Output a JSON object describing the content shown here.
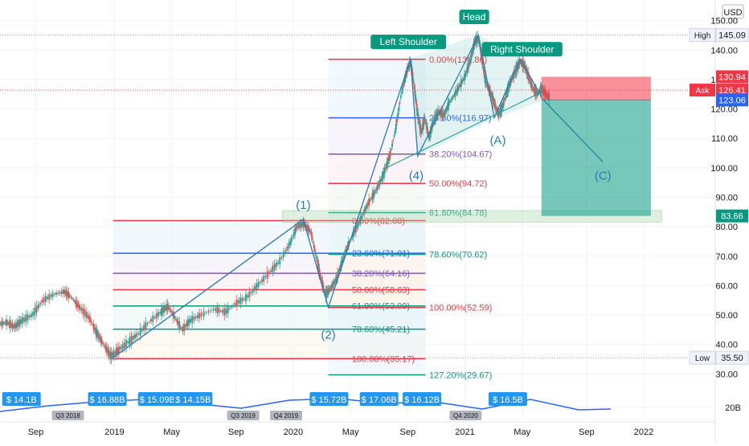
{
  "chart_data": {
    "type": "candlestick",
    "currency": "USD",
    "y_ticks": [
      "150.00",
      "140.00",
      "130.00",
      "120.00",
      "110.00",
      "100.00",
      "90.00",
      "80.00",
      "70.00",
      "60.00",
      "50.00",
      "40.00",
      "30.00"
    ],
    "y_ticks_vals": [
      150,
      140,
      130,
      120,
      110,
      100,
      90,
      80,
      70,
      60,
      50,
      40,
      30
    ],
    "volume_tick": "20B",
    "ylim": [
      26,
      157
    ],
    "x_ticks": [
      "Sep",
      "2019",
      "May",
      "Sep",
      "2020",
      "May",
      "Sep",
      "2021",
      "May",
      "Sep",
      "2022"
    ],
    "x_ticks_pos": [
      0.05,
      0.16,
      0.24,
      0.33,
      0.41,
      0.49,
      0.57,
      0.65,
      0.73,
      0.82,
      0.9
    ],
    "price_labels": {
      "high": {
        "label": "High",
        "value": "145.09",
        "v": 145.09
      },
      "low": {
        "label": "Low",
        "value": "35.50",
        "v": 35.5
      },
      "ask": {
        "label": "Ask",
        "value": "126.41",
        "v": 126.41
      },
      "stop": {
        "value": "130.94",
        "v": 130.94
      },
      "price": {
        "value": "123.06",
        "v": 123.06
      },
      "target": {
        "value": "83.66",
        "v": 83.66
      }
    },
    "fib_upper": [
      {
        "text": "0.00%(136.86)",
        "v": 136.86,
        "c": "red"
      },
      {
        "text": "23.60%(116.97)",
        "v": 116.97,
        "c": "blue"
      },
      {
        "text": "38.20%(104.67)",
        "v": 104.67,
        "c": "purple"
      },
      {
        "text": "50.00%(94.72)",
        "v": 94.72,
        "c": "red"
      },
      {
        "text": "61.80%(84.78)",
        "v": 84.78,
        "c": "teal"
      },
      {
        "text": "78.60%(70.62)",
        "v": 70.62,
        "c": "teal"
      },
      {
        "text": "100.00%(52.59)",
        "v": 52.59,
        "c": "red"
      },
      {
        "text": "127.20%(29.67)",
        "v": 29.67,
        "c": "teal"
      }
    ],
    "fib_lower": [
      {
        "text": "0.00%(82.08)",
        "v": 82.08,
        "c": "red"
      },
      {
        "text": "23.60%(71.01)",
        "v": 71.01,
        "c": "blue"
      },
      {
        "text": "38.20%(64.16)",
        "v": 64.16,
        "c": "purple"
      },
      {
        "text": "50.00%(58.63)",
        "v": 58.63,
        "c": "red"
      },
      {
        "text": "61.80%(53.09)",
        "v": 53.09,
        "c": "teal"
      },
      {
        "text": "78.60%(45.21)",
        "v": 45.21,
        "c": "teal"
      },
      {
        "text": "100.00%(35.17)",
        "v": 35.17,
        "c": "red"
      }
    ],
    "pattern_labels": {
      "left": "Left Shoulder",
      "head": "Head",
      "right": "Right Shoulder"
    },
    "waves": [
      {
        "text": "(1)",
        "x": 0.424,
        "v": 86
      },
      {
        "text": "(2)",
        "x": 0.459,
        "v": 42
      },
      {
        "text": "(4)",
        "x": 0.582,
        "v": 96
      },
      {
        "text": "(A)",
        "x": 0.696,
        "v": 108
      },
      {
        "text": "(C)",
        "x": 0.843,
        "v": 96
      }
    ],
    "earnings": [
      "$ 14.1B",
      "$ 16.88B",
      "$ 15.09B",
      "$ 14.15B",
      "$ 15.72B",
      "$ 17.06B",
      "$ 16.12B",
      "$ 16.5B"
    ],
    "earnings_pos": [
      0.03,
      0.15,
      0.22,
      0.27,
      0.46,
      0.53,
      0.59,
      0.71
    ],
    "quarters": [
      "Q3 2018",
      "Q3 2019",
      "Q4 2019",
      "Q4 2020"
    ],
    "quarters_pos": [
      0.095,
      0.34,
      0.4,
      0.651
    ],
    "price_series": [
      [
        0.0,
        47
      ],
      [
        0.01,
        47.5
      ],
      [
        0.02,
        46
      ],
      [
        0.03,
        48
      ],
      [
        0.045,
        50
      ],
      [
        0.06,
        55
      ],
      [
        0.075,
        57
      ],
      [
        0.09,
        58
      ],
      [
        0.1,
        56
      ],
      [
        0.11,
        53
      ],
      [
        0.125,
        49
      ],
      [
        0.135,
        44
      ],
      [
        0.145,
        40
      ],
      [
        0.155,
        36
      ],
      [
        0.165,
        38
      ],
      [
        0.18,
        41
      ],
      [
        0.195,
        44
      ],
      [
        0.21,
        48
      ],
      [
        0.225,
        51
      ],
      [
        0.235,
        53
      ],
      [
        0.245,
        49
      ],
      [
        0.255,
        45
      ],
      [
        0.265,
        48
      ],
      [
        0.28,
        50
      ],
      [
        0.3,
        52
      ],
      [
        0.315,
        51
      ],
      [
        0.33,
        54
      ],
      [
        0.345,
        56
      ],
      [
        0.36,
        60
      ],
      [
        0.375,
        64
      ],
      [
        0.39,
        68
      ],
      [
        0.405,
        74
      ],
      [
        0.415,
        80
      ],
      [
        0.425,
        81
      ],
      [
        0.435,
        78
      ],
      [
        0.442,
        70
      ],
      [
        0.448,
        63
      ],
      [
        0.455,
        57
      ],
      [
        0.462,
        59
      ],
      [
        0.47,
        62
      ],
      [
        0.478,
        68
      ],
      [
        0.485,
        73
      ],
      [
        0.495,
        78
      ],
      [
        0.505,
        83
      ],
      [
        0.515,
        88
      ],
      [
        0.525,
        92
      ],
      [
        0.535,
        97
      ],
      [
        0.545,
        104
      ],
      [
        0.553,
        113
      ],
      [
        0.561,
        125
      ],
      [
        0.569,
        133
      ],
      [
        0.574,
        136
      ],
      [
        0.579,
        128
      ],
      [
        0.584,
        118
      ],
      [
        0.589,
        112
      ],
      [
        0.594,
        117
      ],
      [
        0.6,
        110
      ],
      [
        0.606,
        116
      ],
      [
        0.613,
        119
      ],
      [
        0.621,
        118
      ],
      [
        0.628,
        122
      ],
      [
        0.636,
        125
      ],
      [
        0.643,
        128
      ],
      [
        0.65,
        131
      ],
      [
        0.657,
        136
      ],
      [
        0.664,
        143
      ],
      [
        0.669,
        144
      ],
      [
        0.673,
        138
      ],
      [
        0.679,
        129
      ],
      [
        0.685,
        126
      ],
      [
        0.691,
        122
      ],
      [
        0.697,
        118
      ],
      [
        0.703,
        121
      ],
      [
        0.709,
        126
      ],
      [
        0.715,
        130
      ],
      [
        0.721,
        133
      ],
      [
        0.727,
        136
      ],
      [
        0.733,
        135
      ],
      [
        0.739,
        131
      ],
      [
        0.745,
        127
      ],
      [
        0.751,
        125
      ],
      [
        0.757,
        127
      ],
      [
        0.763,
        125
      ],
      [
        0.768,
        124
      ]
    ]
  }
}
